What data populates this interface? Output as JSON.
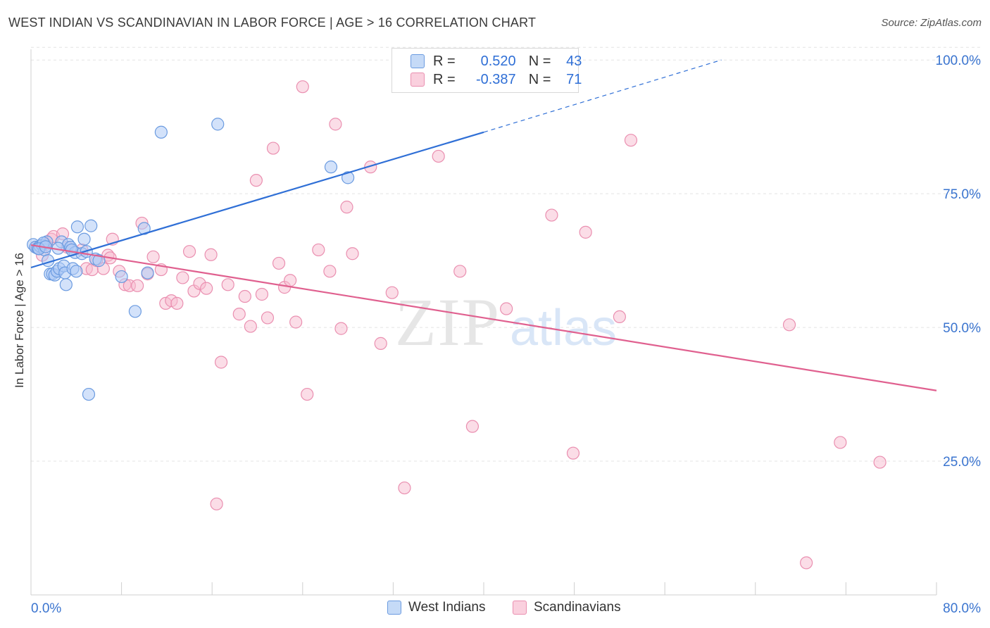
{
  "header": {
    "title": "WEST INDIAN VS SCANDINAVIAN IN LABOR FORCE | AGE > 16 CORRELATION CHART",
    "source": "Source: ZipAtlas.com"
  },
  "legend_box": {
    "rows": [
      {
        "r_label": "R =",
        "r_value": "0.520",
        "n_label": "N =",
        "n_value": "43"
      },
      {
        "r_label": "R =",
        "r_value": "-0.387",
        "n_label": "N =",
        "n_value": "71"
      }
    ]
  },
  "watermark": {
    "zip": "ZIP",
    "atlas": "atlas"
  },
  "colors": {
    "west_indians_fill": "#aecbf5",
    "west_indians_stroke": "#6b9be0",
    "west_indians_line": "#2f6fd6",
    "scandinavians_fill": "#f7bcd0",
    "scandinavians_stroke": "#ea8fb0",
    "scandinavians_line": "#e0608f",
    "axis_label": "#3a74cf"
  },
  "chart_data": {
    "type": "scatter",
    "title": "WEST INDIAN VS SCANDINAVIAN IN LABOR FORCE | AGE > 16 CORRELATION CHART",
    "xlabel": "",
    "ylabel": "In Labor Force | Age > 16",
    "xlim": [
      0,
      80
    ],
    "ylim": [
      0,
      102
    ],
    "x_tick_labels": [
      "0.0%",
      "80.0%"
    ],
    "y_ticks": [
      25,
      50,
      75,
      100
    ],
    "y_tick_labels": [
      "25.0%",
      "50.0%",
      "75.0%",
      "100.0%"
    ],
    "grid": true,
    "legend": [
      "West Indians",
      "Scandinavians"
    ],
    "series": [
      {
        "name": "West Indians",
        "R": 0.52,
        "N": 43,
        "trend": {
          "x0": 0,
          "y0": 61.2,
          "x1": 40,
          "y1": 86.5,
          "dash_to_x": 61,
          "dash_to_y": 100
        },
        "points": [
          [
            0.2,
            65.5
          ],
          [
            0.4,
            65
          ],
          [
            0.6,
            64.8
          ],
          [
            0.8,
            65.2
          ],
          [
            1.0,
            65.4
          ],
          [
            1.2,
            64.5
          ],
          [
            1.4,
            66
          ],
          [
            1.5,
            62.5
          ],
          [
            1.7,
            60
          ],
          [
            1.9,
            60
          ],
          [
            2.1,
            59.8
          ],
          [
            2.3,
            60.5
          ],
          [
            2.5,
            61
          ],
          [
            2.7,
            66
          ],
          [
            2.9,
            61.5
          ],
          [
            3.0,
            60.2
          ],
          [
            3.1,
            58
          ],
          [
            3.3,
            65.5
          ],
          [
            3.5,
            65
          ],
          [
            3.7,
            61
          ],
          [
            3.9,
            64
          ],
          [
            4.0,
            60.5
          ],
          [
            4.1,
            68.8
          ],
          [
            4.5,
            63.8
          ],
          [
            4.7,
            66.5
          ],
          [
            4.9,
            64.2
          ],
          [
            5.1,
            37.5
          ],
          [
            5.3,
            69
          ],
          [
            5.7,
            62.8
          ],
          [
            6.0,
            62.5
          ],
          [
            8.0,
            59.5
          ],
          [
            9.2,
            53
          ],
          [
            10.0,
            68.5
          ],
          [
            10.3,
            60.2
          ],
          [
            11.5,
            86.5
          ],
          [
            16.5,
            88
          ],
          [
            26.5,
            80
          ],
          [
            28.0,
            78
          ],
          [
            1.1,
            65.8
          ],
          [
            2.4,
            64.8
          ],
          [
            0.7,
            64.7
          ],
          [
            3.6,
            64.5
          ],
          [
            1.3,
            65.1
          ]
        ]
      },
      {
        "name": "Scandinavians",
        "R": -0.387,
        "N": 71,
        "trend": {
          "x0": 0,
          "y0": 65.4,
          "x1": 80,
          "y1": 38.2
        },
        "points": [
          [
            0.5,
            65
          ],
          [
            1.0,
            63.5
          ],
          [
            1.3,
            65.5
          ],
          [
            1.8,
            66.5
          ],
          [
            2.0,
            67
          ],
          [
            2.8,
            67.5
          ],
          [
            3.2,
            65
          ],
          [
            4.5,
            64.5
          ],
          [
            4.9,
            61
          ],
          [
            5.4,
            60.8
          ],
          [
            5.8,
            62.5
          ],
          [
            6.4,
            61
          ],
          [
            6.8,
            63.5
          ],
          [
            7.2,
            66.5
          ],
          [
            7.8,
            60.5
          ],
          [
            8.3,
            58
          ],
          [
            8.7,
            57.8
          ],
          [
            9.4,
            57.8
          ],
          [
            9.8,
            69.5
          ],
          [
            10.3,
            60
          ],
          [
            10.8,
            63.2
          ],
          [
            11.5,
            60.8
          ],
          [
            11.9,
            54.5
          ],
          [
            12.4,
            55
          ],
          [
            12.9,
            54.5
          ],
          [
            13.4,
            59.3
          ],
          [
            14.0,
            64.2
          ],
          [
            14.4,
            56.8
          ],
          [
            14.9,
            58.2
          ],
          [
            15.5,
            57.3
          ],
          [
            15.9,
            63.6
          ],
          [
            16.4,
            17
          ],
          [
            16.8,
            43.5
          ],
          [
            17.4,
            58
          ],
          [
            18.4,
            52.5
          ],
          [
            18.9,
            55.8
          ],
          [
            19.4,
            50.2
          ],
          [
            19.9,
            77.5
          ],
          [
            20.4,
            56.2
          ],
          [
            20.9,
            51.8
          ],
          [
            21.4,
            83.5
          ],
          [
            21.9,
            62
          ],
          [
            22.4,
            57.5
          ],
          [
            22.9,
            58.8
          ],
          [
            23.4,
            51
          ],
          [
            24.0,
            95
          ],
          [
            24.4,
            37.5
          ],
          [
            25.4,
            64.5
          ],
          [
            26.4,
            60.5
          ],
          [
            26.9,
            88
          ],
          [
            27.4,
            49.8
          ],
          [
            27.9,
            72.5
          ],
          [
            28.4,
            63.8
          ],
          [
            30.0,
            80
          ],
          [
            30.9,
            47
          ],
          [
            31.9,
            56.5
          ],
          [
            33.0,
            20
          ],
          [
            36.0,
            82
          ],
          [
            37.9,
            60.5
          ],
          [
            39.0,
            31.5
          ],
          [
            42.0,
            53.5
          ],
          [
            46.0,
            71
          ],
          [
            47.9,
            26.5
          ],
          [
            49.0,
            67.8
          ],
          [
            52.0,
            52
          ],
          [
            53.0,
            85
          ],
          [
            67.0,
            50.5
          ],
          [
            68.5,
            6
          ],
          [
            71.5,
            28.5
          ],
          [
            75.0,
            24.8
          ],
          [
            7.0,
            63
          ]
        ]
      }
    ]
  },
  "bottom_legend": {
    "west_indians": "West Indians",
    "scandinavians": "Scandinavians"
  }
}
